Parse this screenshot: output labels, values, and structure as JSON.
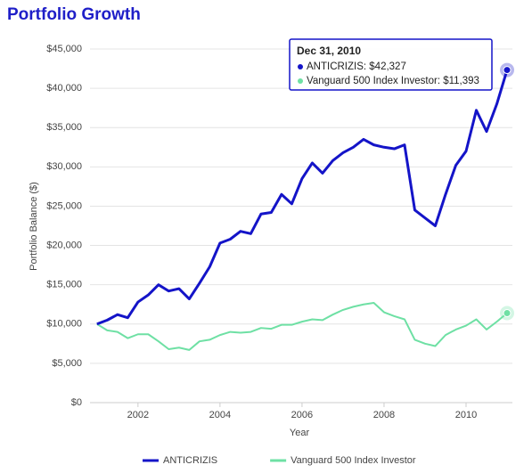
{
  "chart_data": {
    "type": "line",
    "title": "Portfolio Growth",
    "xlabel": "Year",
    "ylabel": "Portfolio Balance ($)",
    "x": [
      2001,
      2001.25,
      2001.5,
      2001.75,
      2002,
      2002.25,
      2002.5,
      2002.75,
      2003,
      2003.25,
      2003.5,
      2003.75,
      2004,
      2004.25,
      2004.5,
      2004.75,
      2005,
      2005.25,
      2005.5,
      2005.75,
      2006,
      2006.25,
      2006.5,
      2006.75,
      2007,
      2007.25,
      2007.5,
      2007.75,
      2008,
      2008.25,
      2008.5,
      2008.75,
      2009,
      2009.25,
      2009.5,
      2009.75,
      2010,
      2010.25,
      2010.5,
      2010.75,
      2011
    ],
    "series": [
      {
        "name": "ANTICRIZIS",
        "color": "#1414c8",
        "values": [
          10000,
          10500,
          11200,
          10800,
          12800,
          13700,
          15000,
          14200,
          14500,
          13200,
          15200,
          17300,
          20300,
          20800,
          21800,
          21500,
          24000,
          24200,
          26500,
          25300,
          28500,
          30500,
          29200,
          30800,
          31800,
          32500,
          33500,
          32800,
          32500,
          32300,
          32800,
          24500,
          23500,
          22500,
          26500,
          30200,
          32000,
          37200,
          34500,
          38000,
          42327
        ]
      },
      {
        "name": "Vanguard 500 Index Investor",
        "color": "#6ee0a4",
        "values": [
          10000,
          9200,
          9000,
          8200,
          8700,
          8700,
          7800,
          6800,
          7000,
          6700,
          7800,
          8000,
          8600,
          9000,
          8900,
          9000,
          9500,
          9400,
          9900,
          9900,
          10300,
          10600,
          10500,
          11200,
          11800,
          12200,
          12500,
          12700,
          11500,
          11000,
          10600,
          8000,
          7500,
          7200,
          8600,
          9300,
          9800,
          10600,
          9300,
          10300,
          11393
        ]
      }
    ],
    "xlim": [
      2000.83,
      2011.13
    ],
    "xticks": [
      2002,
      2004,
      2006,
      2008,
      2010
    ],
    "ylim": [
      0,
      45000
    ],
    "yticks": [
      {
        "value": 0,
        "label": "$0"
      },
      {
        "value": 5000,
        "label": "$5,000"
      },
      {
        "value": 10000,
        "label": "$10,000"
      },
      {
        "value": 15000,
        "label": "$15,000"
      },
      {
        "value": 20000,
        "label": "$20,000"
      },
      {
        "value": 25000,
        "label": "$25,000"
      },
      {
        "value": 30000,
        "label": "$30,000"
      },
      {
        "value": 35000,
        "label": "$35,000"
      },
      {
        "value": 40000,
        "label": "$40,000"
      },
      {
        "value": 45000,
        "label": "$45,000"
      }
    ],
    "grid": true,
    "legend": "bottom",
    "tooltip": {
      "title": "Dec 31, 2010",
      "entries": [
        "ANTICRIZIS: $42,327",
        "Vanguard 500 Index Investor: $11,393"
      ]
    }
  }
}
